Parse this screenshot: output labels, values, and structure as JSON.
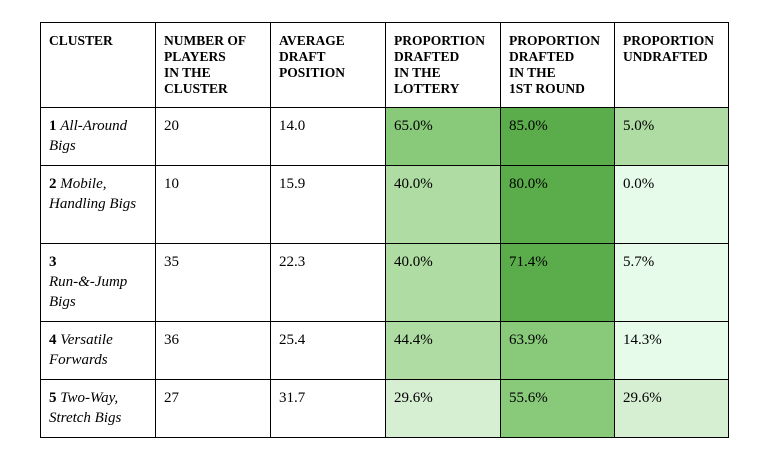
{
  "headers": [
    [
      "CLUSTER"
    ],
    [
      "NUMBER OF",
      "PLAYERS",
      "IN THE",
      "CLUSTER"
    ],
    [
      "AVERAGE",
      "DRAFT",
      "POSITION"
    ],
    [
      "PROPORTION",
      "DRAFTED",
      "IN THE",
      "LOTTERY"
    ],
    [
      "PROPORTION",
      "DRAFTED",
      "IN THE",
      "1ST ROUND"
    ],
    [
      "PROPORTION",
      "UNDRAFTED"
    ]
  ],
  "rows": [
    {
      "num": "1",
      "name": "All-Around Bigs",
      "players": "20",
      "avg_pick": "14.0",
      "lottery": "65.0%",
      "first_round": "85.0%",
      "undrafted": "5.0%",
      "colors": {
        "lottery": "#88c97a",
        "first_round": "#5aad4a",
        "undrafted": "#aedca2"
      }
    },
    {
      "num": "2",
      "name": "Mobile, Handling Bigs",
      "players": "10",
      "avg_pick": "15.9",
      "lottery": "40.0%",
      "first_round": "80.0%",
      "undrafted": "0.0%",
      "colors": {
        "lottery": "#aedca2",
        "first_round": "#5aad4a",
        "undrafted": "#e6fbe9"
      }
    },
    {
      "num": "3",
      "name": "Run-&-Jump Bigs",
      "players": "35",
      "avg_pick": "22.3",
      "lottery": "40.0%",
      "first_round": "71.4%",
      "undrafted": "5.7%",
      "colors": {
        "lottery": "#aedca2",
        "first_round": "#5aad4a",
        "undrafted": "#e6fbe9"
      }
    },
    {
      "num": "4",
      "name": "Versatile Forwards",
      "players": "36",
      "avg_pick": "25.4",
      "lottery": "44.4%",
      "first_round": "63.9%",
      "undrafted": "14.3%",
      "colors": {
        "lottery": "#aedca2",
        "first_round": "#88c97a",
        "undrafted": "#e6fbe9"
      }
    },
    {
      "num": "5",
      "name": "Two-Way, Stretch Bigs",
      "players": "27",
      "avg_pick": "31.7",
      "lottery": "29.6%",
      "first_round": "55.6%",
      "undrafted": "29.6%",
      "colors": {
        "lottery": "#d6eed2",
        "first_round": "#88c97a",
        "undrafted": "#d6eed2"
      }
    }
  ]
}
